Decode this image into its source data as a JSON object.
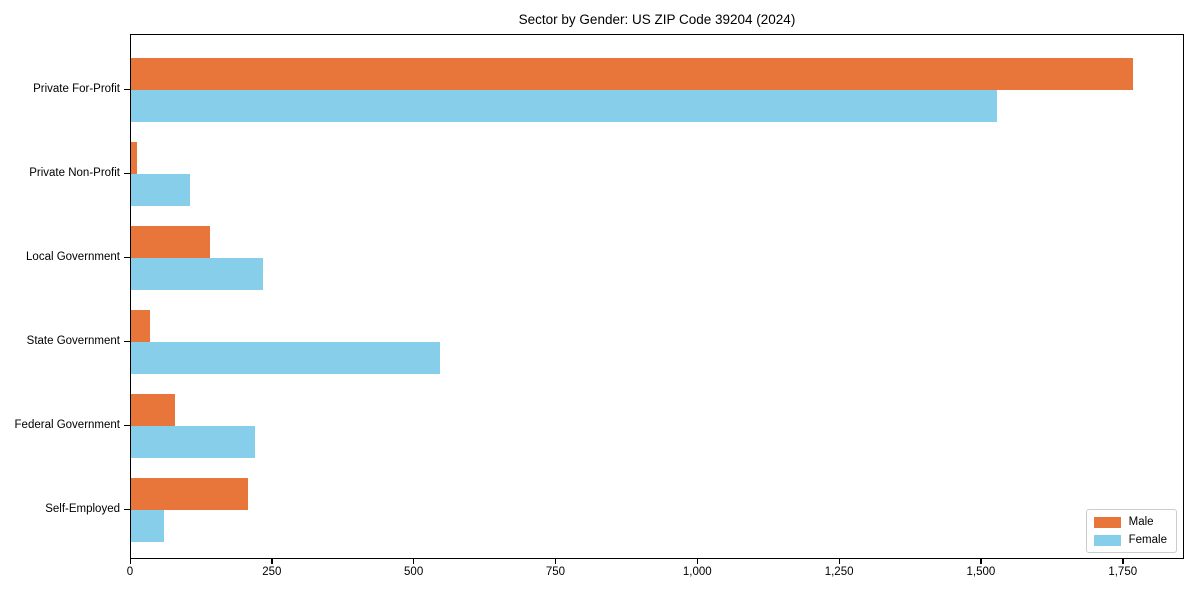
{
  "chart_data": {
    "type": "bar",
    "orientation": "horizontal",
    "title": "Sector by Gender: US ZIP Code 39204 (2024)",
    "categories": [
      "Private For-Profit",
      "Private Non-Profit",
      "Local Government",
      "State Government",
      "Federal Government",
      "Self-Employed"
    ],
    "series": [
      {
        "name": "Male",
        "color": "#E8763B",
        "values": [
          1770,
          10,
          140,
          34,
          78,
          207
        ]
      },
      {
        "name": "Female",
        "color": "#87CEEB",
        "values": [
          1530,
          105,
          234,
          545,
          219,
          58
        ]
      }
    ],
    "xlabel": "",
    "ylabel": "",
    "xlim": [
      0,
      1858
    ],
    "x_tick_values": [
      0,
      250,
      500,
      750,
      1000,
      1250,
      1500,
      1750
    ],
    "x_tick_labels": [
      "0",
      "250",
      "500",
      "750",
      "1,000",
      "1,250",
      "1,500",
      "1,750"
    ],
    "grid": false,
    "legend_position": "lower right",
    "background_color": "#ffffff",
    "spine_color": "#000000",
    "text_color": "#000000"
  }
}
